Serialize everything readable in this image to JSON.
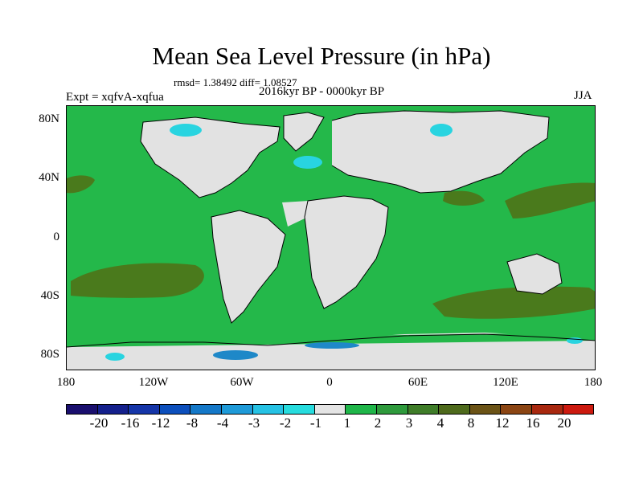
{
  "title": "Mean Sea Level Pressure (in hPa)",
  "stats": "rmsd= 1.38492 diff= 1.08527",
  "experiment": "Expt = xqfvA-xqfua",
  "period": "2016kyr BP - 0000kyr BP",
  "season": "JJA",
  "axes": {
    "y_ticks": [
      "80N",
      "40N",
      "0",
      "40S",
      "80S"
    ],
    "x_ticks": [
      "180",
      "120W",
      "60W",
      "0",
      "60E",
      "120E",
      "180"
    ]
  },
  "map_fields": {
    "land": "#e2e2e2",
    "ocean_anomaly": "#24b84a",
    "strong_anomaly": "#4a7a1c",
    "negative_small": "#28d4e0",
    "negative_medium": "#1e88c8",
    "coastline": "#000000"
  },
  "colorbar": {
    "colors": [
      "#1a0f6e",
      "#14208c",
      "#1535a8",
      "#0c4fbc",
      "#1478c8",
      "#1e9ad8",
      "#26c2e4",
      "#27dcde",
      "#e4e4e4",
      "#1fb649",
      "#2e9a3c",
      "#3f7d29",
      "#4e6a1c",
      "#6b5316",
      "#8b4513",
      "#a8280f",
      "#cc1a0f"
    ],
    "labels": [
      "-20",
      "-16",
      "-12",
      "-8",
      "-4",
      "-3",
      "-2",
      "-1",
      "1",
      "2",
      "3",
      "4",
      "8",
      "12",
      "16",
      "20"
    ]
  }
}
